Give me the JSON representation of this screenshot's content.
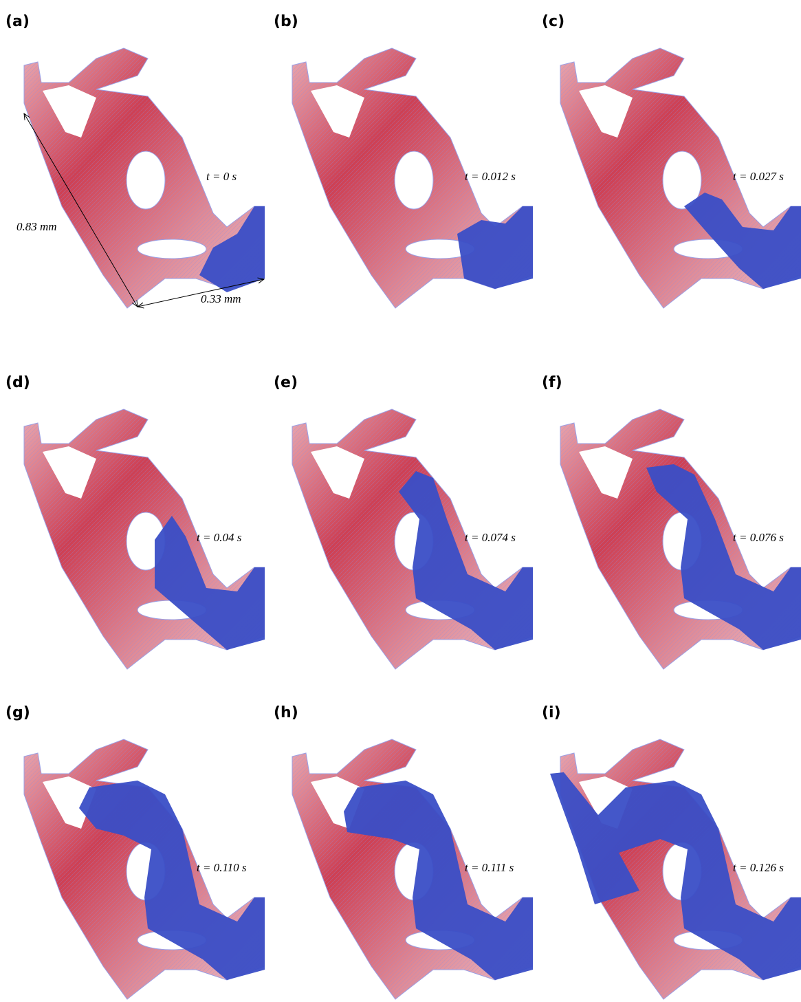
{
  "panels": [
    {
      "label": "(a)",
      "time": "t = 0 s"
    },
    {
      "label": "(b)",
      "time": "t = 0.012 s"
    },
    {
      "label": "(c)",
      "time": "t = 0.027 s"
    },
    {
      "label": "(d)",
      "time": "t = 0.04 s"
    },
    {
      "label": "(e)",
      "time": "t = 0.074 s"
    },
    {
      "label": "(f)",
      "time": "t = 0.076 s"
    },
    {
      "label": "(g)",
      "time": "t = 0.110 s"
    },
    {
      "label": "(h)",
      "time": "t = 0.111 s"
    },
    {
      "label": "(i)",
      "time": "t = 0.126 s"
    }
  ],
  "scale": {
    "length": "0.83 mm",
    "width": "0.33 mm"
  }
}
